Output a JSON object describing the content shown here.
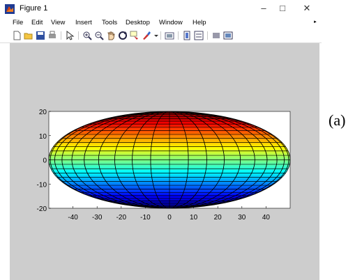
{
  "window": {
    "title": "Figure 1",
    "controls": {
      "minimize": "–",
      "maximize": "□",
      "close": "✕"
    }
  },
  "menu": {
    "items": [
      "File",
      "Edit",
      "View",
      "Insert",
      "Tools",
      "Desktop",
      "Window",
      "Help"
    ]
  },
  "toolbar": {
    "icons": [
      "new-figure-icon",
      "open-file-icon",
      "save-icon",
      "print-icon",
      "edit-plot-arrow-icon",
      "zoom-in-icon",
      "zoom-out-icon",
      "pan-hand-icon",
      "rotate-3d-icon",
      "data-cursor-icon",
      "brush-icon",
      "link-plot-icon",
      "colorbar-icon",
      "legend-icon",
      "hide-plot-tools-icon",
      "show-plot-tools-icon"
    ]
  },
  "figure_label": "(a)",
  "chart_data": {
    "type": "surface",
    "shape": "ellipsoid surface, jet colormap by height",
    "x_ticks": [
      "-40",
      "-30",
      "-20",
      "-10",
      "0",
      "10",
      "20",
      "30",
      "40"
    ],
    "y_ticks": [
      "20",
      "10",
      "0",
      "-10",
      "-20"
    ],
    "xlim": [
      -50,
      50
    ],
    "ylim": [
      -20,
      20
    ],
    "semi_axis_x": 50,
    "semi_axis_y": 20,
    "colormap": [
      "#00008f",
      "#0000ff",
      "#0080ff",
      "#00ffff",
      "#80ff80",
      "#ffff00",
      "#ff8000",
      "#ff0000",
      "#800000"
    ],
    "grid": false
  }
}
